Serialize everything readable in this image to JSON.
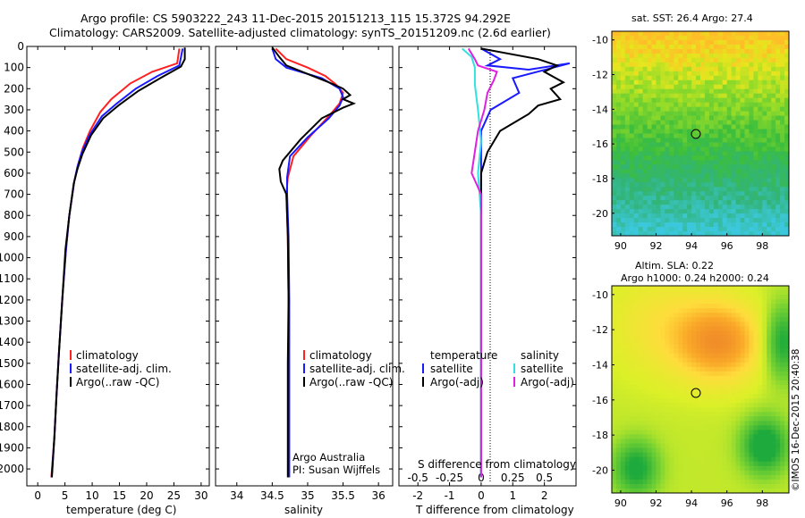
{
  "title": {
    "line1": "Argo profile: CS 5903222_243 11-Dec-2015 20151213_115 15.372S 94.292E",
    "line2": "Climatology: CARS2009. Satellite-adjusted climatology: synTS_20151209.nc (2.6d earlier)"
  },
  "colors": {
    "clim": "#ff2020",
    "sat": "#1a1aff",
    "argo": "#000000",
    "sat_s": "#33e0e0",
    "argo_s": "#e020e0"
  },
  "chart_data": [
    {
      "type": "line",
      "xlabel": "temperature (deg C)",
      "ylabel": "",
      "xlim": [
        -2,
        31.5
      ],
      "ylim": [
        2080,
        0
      ],
      "x_ticks": [
        0,
        5,
        10,
        15,
        20,
        25,
        30
      ],
      "y_ticks": [
        0,
        100,
        200,
        300,
        400,
        500,
        600,
        700,
        800,
        900,
        1000,
        1100,
        1200,
        1300,
        1400,
        1500,
        1600,
        1700,
        1800,
        1900,
        2000
      ],
      "legend": [
        "climatology",
        "satellite-adj. clim.",
        "Argo(..raw -QC)"
      ],
      "series": [
        {
          "name": "climatology",
          "color": "#ff2020",
          "x": [
            26.0,
            25.6,
            21.0,
            17.0,
            13.5,
            11.5,
            9.6,
            8.3,
            7.4,
            6.7,
            5.8,
            5.2,
            4.5,
            3.9,
            3.45,
            3.05,
            2.5
          ],
          "y": [
            10,
            80,
            120,
            175,
            250,
            310,
            400,
            480,
            560,
            640,
            800,
            960,
            1200,
            1450,
            1650,
            1850,
            2040
          ]
        },
        {
          "name": "satellite-adj. clim.",
          "color": "#1a1aff",
          "x": [
            26.6,
            26.0,
            22.0,
            18.0,
            14.5,
            11.8,
            9.5,
            8.1,
            7.3,
            6.7,
            5.8,
            5.2,
            4.5,
            3.9,
            3.45,
            3.05,
            2.55
          ],
          "y": [
            10,
            90,
            140,
            200,
            270,
            330,
            420,
            500,
            570,
            640,
            800,
            960,
            1200,
            1450,
            1650,
            1850,
            2040
          ]
        },
        {
          "name": "Argo(..raw -QC)",
          "color": "#000000",
          "x": [
            27.0,
            27.0,
            26.3,
            22.5,
            18.5,
            14.8,
            12.0,
            9.8,
            8.2,
            7.3,
            6.6,
            5.8,
            5.1,
            4.5,
            3.9,
            3.45,
            3.05,
            2.6
          ],
          "y": [
            5,
            60,
            95,
            150,
            210,
            280,
            340,
            420,
            510,
            580,
            650,
            800,
            960,
            1200,
            1450,
            1650,
            1850,
            2040
          ]
        }
      ]
    },
    {
      "type": "line",
      "xlabel": "salinity",
      "ylabel": "",
      "xlim": [
        33.7,
        36.2
      ],
      "ylim": [
        2080,
        0
      ],
      "x_ticks": [
        34,
        34.5,
        35,
        35.5,
        36
      ],
      "legend": [
        "climatology",
        "satellite-adj. clim.",
        "Argo(..raw -QC)"
      ],
      "annotation": [
        "Argo Australia",
        "PI: Susan Wijffels"
      ],
      "series": [
        {
          "name": "climatology",
          "color": "#ff2020",
          "x": [
            34.55,
            34.7,
            35.0,
            35.25,
            35.4,
            35.5,
            35.45,
            35.3,
            35.05,
            34.8,
            34.72,
            34.7,
            34.72,
            34.73,
            34.73,
            34.73,
            34.73
          ],
          "y": [
            10,
            60,
            100,
            140,
            180,
            220,
            270,
            330,
            420,
            520,
            620,
            700,
            900,
            1200,
            1500,
            1800,
            2040
          ]
        },
        {
          "name": "satellite-adj. clim.",
          "color": "#1a1aff",
          "x": [
            34.5,
            34.55,
            34.7,
            35.2,
            35.45,
            35.5,
            35.45,
            35.3,
            35.0,
            34.75,
            34.71,
            34.71,
            34.73,
            34.74,
            34.74,
            34.74,
            34.74
          ],
          "y": [
            10,
            60,
            100,
            150,
            200,
            240,
            280,
            340,
            430,
            520,
            620,
            700,
            900,
            1200,
            1500,
            1800,
            2040
          ]
        },
        {
          "name": "Argo(..raw -QC)",
          "color": "#000000",
          "x": [
            34.5,
            34.6,
            34.7,
            35.0,
            35.3,
            35.5,
            35.6,
            35.5,
            35.65,
            35.5,
            35.2,
            34.9,
            34.65,
            34.6,
            34.62,
            34.7,
            34.72,
            34.73,
            34.72,
            34.72
          ],
          "y": [
            5,
            50,
            90,
            130,
            170,
            200,
            230,
            250,
            270,
            290,
            340,
            440,
            540,
            580,
            640,
            700,
            900,
            1200,
            1500,
            2040
          ]
        }
      ]
    },
    {
      "type": "line",
      "xlabel": "T difference from climatology",
      "x2label": "S difference from climatology",
      "xlim": [
        -2.6,
        3.0
      ],
      "ylim": [
        2080,
        0
      ],
      "x_ticks": [
        -2,
        -1,
        0,
        1,
        2
      ],
      "x2_ticks": [
        "-0.5",
        "-0.25",
        "0",
        "0.25",
        "0.5"
      ],
      "legend_t": [
        "temperature",
        "satellite",
        "Argo(-adj)"
      ],
      "legend_s": [
        "salinity",
        "satellite",
        "Argo(-adj)"
      ],
      "series": [
        {
          "name": "temperature satellite",
          "color": "#1a1aff",
          "x": [
            0,
            0.6,
            0.2,
            1.5,
            2.8,
            1.0,
            1.2,
            0.3,
            0,
            0,
            0,
            0
          ],
          "y": [
            10,
            60,
            90,
            110,
            80,
            150,
            220,
            300,
            400,
            600,
            1000,
            2040
          ]
        },
        {
          "name": "temperature Argo(-adj)",
          "color": "#000000",
          "x": [
            0,
            1.8,
            2.4,
            2.0,
            2.6,
            2.2,
            2.5,
            1.8,
            1.5,
            0.6,
            0.2,
            0,
            0,
            0
          ],
          "y": [
            10,
            60,
            90,
            120,
            170,
            200,
            250,
            280,
            320,
            400,
            500,
            600,
            1000,
            2040
          ]
        },
        {
          "name": "salinity satellite",
          "color": "#33e0e0",
          "x": [
            -0.6,
            -0.3,
            -0.2,
            -0.2,
            -0.1,
            0,
            -0.1,
            0,
            0,
            0
          ],
          "y": [
            10,
            50,
            100,
            180,
            300,
            450,
            600,
            800,
            1200,
            2040
          ]
        },
        {
          "name": "salinity Argo(-adj)",
          "color": "#e020e0",
          "x": [
            -0.4,
            -0.2,
            -0.1,
            0.5,
            0.4,
            0.2,
            0.1,
            -0.1,
            -0.3,
            0,
            0,
            0
          ],
          "y": [
            10,
            60,
            90,
            120,
            160,
            220,
            300,
            400,
            600,
            700,
            1000,
            2040
          ]
        }
      ]
    },
    {
      "type": "heatmap",
      "title": "sat. SST: 26.4  Argo: 27.4",
      "x_ticks": [
        90,
        92,
        94,
        96,
        98
      ],
      "y_ticks": [
        -10,
        -12,
        -14,
        -16,
        -18,
        -20
      ],
      "xlim": [
        89.5,
        99.5
      ],
      "ylim": [
        -21.3,
        -9.5
      ],
      "marker": {
        "x": 94.3,
        "y": -15.4
      }
    },
    {
      "type": "heatmap",
      "title": "Altim. SLA: 0.22",
      "subtitle": "Argo h1000: 0.24 h2000: 0.24",
      "x_ticks": [
        90,
        92,
        94,
        96,
        98
      ],
      "y_ticks": [
        -10,
        -12,
        -14,
        -16,
        -18,
        -20
      ],
      "xlim": [
        89.5,
        99.5
      ],
      "ylim": [
        -21.3,
        -9.5
      ],
      "marker": {
        "x": 94.3,
        "y": -15.4
      }
    }
  ],
  "credit": "©IMOS 16-Dec-2015 20:40:38"
}
